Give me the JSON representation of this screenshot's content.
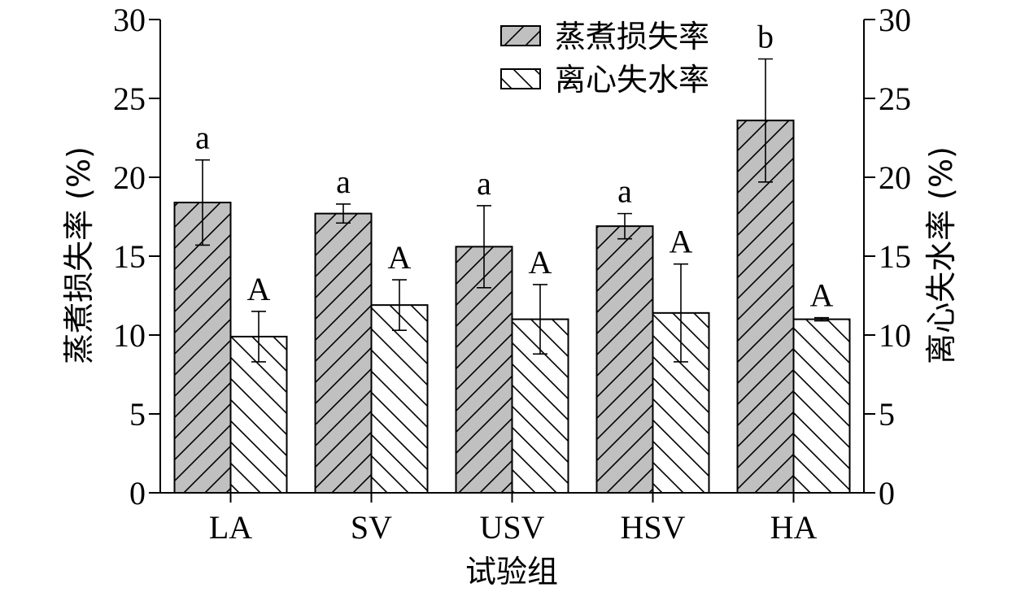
{
  "chart_data": {
    "type": "bar",
    "categories": [
      "LA",
      "SV",
      "USV",
      "HSV",
      "HA"
    ],
    "xlabel": "试验组",
    "ylabel_left": "蒸煮损失率 (%)",
    "ylabel_right": "离心失水率 (%)",
    "ylim": [
      0,
      30
    ],
    "yticks": [
      0,
      5,
      10,
      15,
      20,
      25,
      30
    ],
    "legend_position": "top-right",
    "series": [
      {
        "name": "蒸煮损失率",
        "axis": "left",
        "fill": "#c0c0c0",
        "hatch": "forward",
        "values": [
          18.4,
          17.7,
          15.6,
          16.9,
          23.6
        ],
        "errors": [
          2.7,
          0.6,
          2.6,
          0.8,
          3.9
        ],
        "labels": [
          "a",
          "a",
          "a",
          "a",
          "b"
        ]
      },
      {
        "name": "离心失水率",
        "axis": "right",
        "fill": "#ffffff",
        "hatch": "backward",
        "values": [
          9.9,
          11.9,
          11.0,
          11.4,
          11.0
        ],
        "errors": [
          1.6,
          1.6,
          2.2,
          3.1,
          0.1
        ],
        "labels": [
          "A",
          "A",
          "A",
          "A",
          "A"
        ]
      }
    ]
  }
}
